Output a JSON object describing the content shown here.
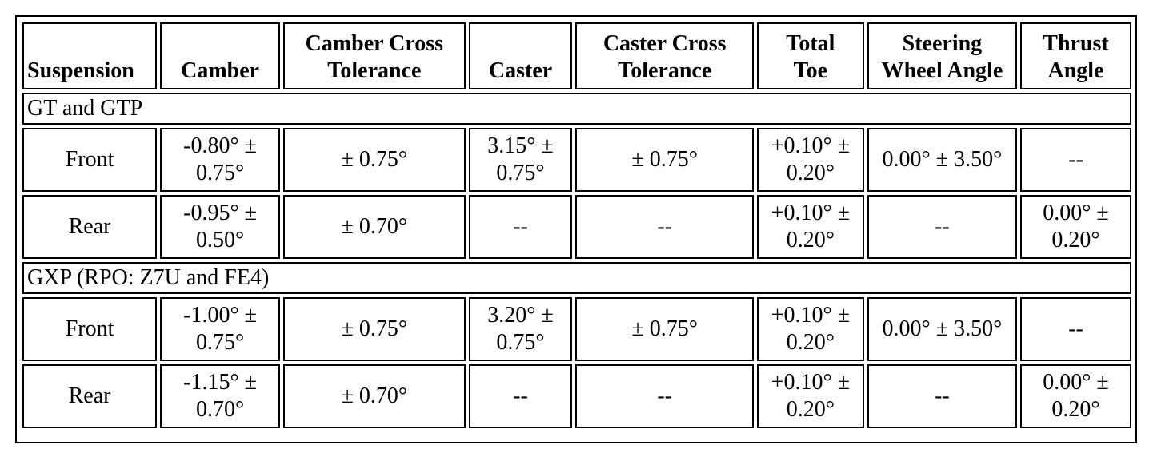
{
  "columns": [
    [
      "Suspension"
    ],
    [
      "Camber"
    ],
    [
      "Camber Cross",
      "Tolerance"
    ],
    [
      "Caster"
    ],
    [
      "Caster Cross",
      "Tolerance"
    ],
    [
      "Total",
      "Toe"
    ],
    [
      "Steering",
      "Wheel Angle"
    ],
    [
      "Thrust",
      "Angle"
    ]
  ],
  "groups": [
    {
      "name": "GT and GTP",
      "rows": [
        {
          "suspension": "Front",
          "camber": [
            "-0.80° ±",
            "0.75°"
          ],
          "camber_cross": "± 0.75°",
          "caster": [
            "3.15° ±",
            "0.75°"
          ],
          "caster_cross": "± 0.75°",
          "total_toe": [
            "+0.10° ±",
            "0.20°"
          ],
          "steering": "0.00° ± 3.50°",
          "thrust": [
            "--"
          ]
        },
        {
          "suspension": "Rear",
          "camber": [
            "-0.95° ±",
            "0.50°"
          ],
          "camber_cross": "± 0.70°",
          "caster": [
            "--"
          ],
          "caster_cross": "--",
          "total_toe": [
            "+0.10° ±",
            "0.20°"
          ],
          "steering": "--",
          "thrust": [
            "0.00° ±",
            "0.20°"
          ]
        }
      ]
    },
    {
      "name": "GXP (RPO: Z7U and FE4)",
      "rows": [
        {
          "suspension": "Front",
          "camber": [
            "-1.00° ±",
            "0.75°"
          ],
          "camber_cross": "± 0.75°",
          "caster": [
            "3.20° ±",
            "0.75°"
          ],
          "caster_cross": "± 0.75°",
          "total_toe": [
            "+0.10° ±",
            "0.20°"
          ],
          "steering": "0.00° ± 3.50°",
          "thrust": [
            "--"
          ]
        },
        {
          "suspension": "Rear",
          "camber": [
            "-1.15° ±",
            "0.70°"
          ],
          "camber_cross": "± 0.70°",
          "caster": [
            "--"
          ],
          "caster_cross": "--",
          "total_toe": [
            "+0.10° ±",
            "0.20°"
          ],
          "steering": "--",
          "thrust": [
            "0.00° ±",
            "0.20°"
          ]
        }
      ]
    }
  ]
}
